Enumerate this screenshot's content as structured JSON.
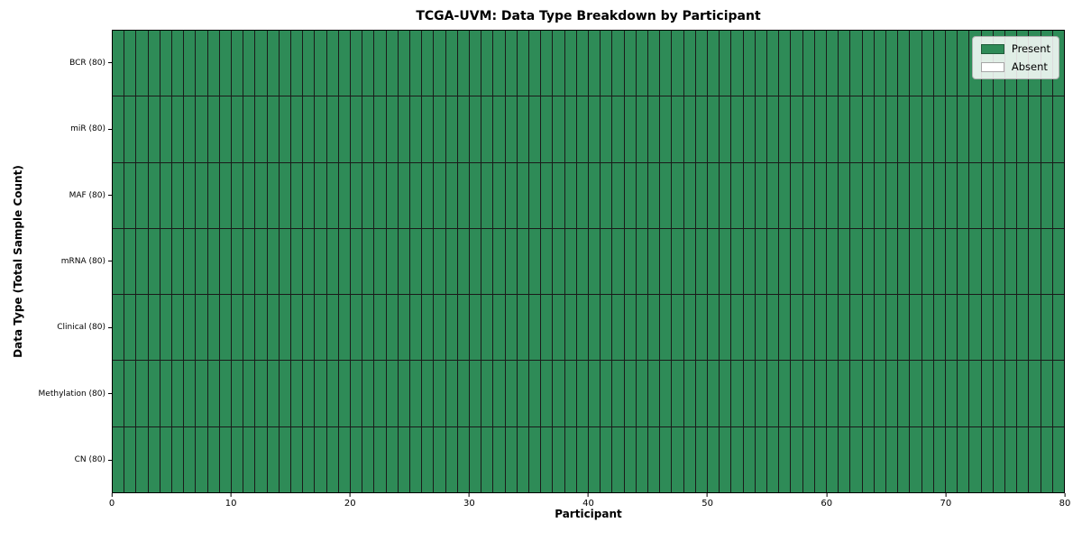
{
  "chart_data": {
    "type": "heatmap",
    "title": "TCGA-UVM: Data Type Breakdown by Participant",
    "xlabel": "Participant",
    "ylabel": "Data Type (Total Sample Count)",
    "n_participants": 80,
    "x_range": [
      0,
      80
    ],
    "x_ticks": [
      "0",
      "10",
      "20",
      "30",
      "40",
      "50",
      "60",
      "70",
      "80"
    ],
    "rows": [
      {
        "label": "BCR (80)",
        "data_type": "BCR",
        "total_sample_count": 80,
        "present_count": 80
      },
      {
        "label": "miR (80)",
        "data_type": "miR",
        "total_sample_count": 80,
        "present_count": 80
      },
      {
        "label": "MAF (80)",
        "data_type": "MAF",
        "total_sample_count": 80,
        "present_count": 80
      },
      {
        "label": "mRNA (80)",
        "data_type": "mRNA",
        "total_sample_count": 80,
        "present_count": 80
      },
      {
        "label": "Clinical (80)",
        "data_type": "Clinical",
        "total_sample_count": 80,
        "present_count": 80
      },
      {
        "label": "Methylation (80)",
        "data_type": "Methylation",
        "total_sample_count": 80,
        "present_count": 80
      },
      {
        "label": "CN (80)",
        "data_type": "CN",
        "total_sample_count": 80,
        "present_count": 80
      }
    ],
    "legend": [
      {
        "label": "Present",
        "color": "#2e8b57"
      },
      {
        "label": "Absent",
        "color": "#ffffff"
      }
    ],
    "colors": {
      "present": "#2e8b57",
      "absent": "#ffffff",
      "cell_border": "#1a1a1a",
      "spine": "#000000"
    },
    "legend_position": "upper right",
    "grid": false
  }
}
